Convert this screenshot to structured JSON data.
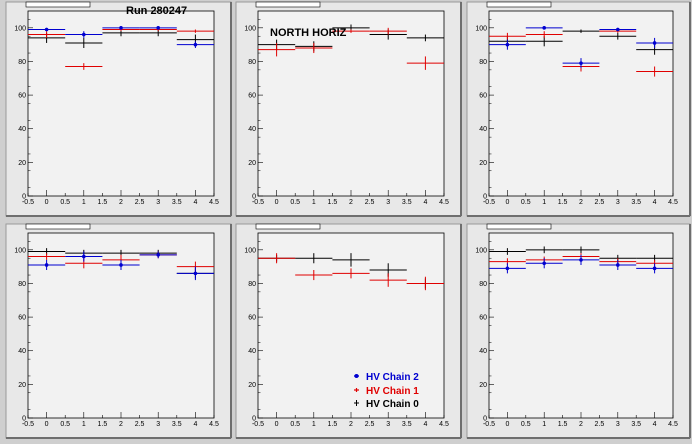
{
  "page": {
    "run_label": "Run 280247",
    "annotation": "NORTH HORIZ"
  },
  "colors": {
    "chain0": "#000000",
    "chain1": "#e00000",
    "chain2": "#0000d0"
  },
  "legend": [
    {
      "label": "HV Chain 2",
      "color": "#0000d0"
    },
    {
      "label": "HV Chain 1",
      "color": "#e00000"
    },
    {
      "label": "HV Chain 0",
      "color": "#000000"
    }
  ],
  "chart_data": [
    {
      "type": "scatter",
      "title": "",
      "xlim": [
        -0.5,
        4.5
      ],
      "ylim": [
        0,
        110
      ],
      "xticks": [
        -0.5,
        0,
        0.5,
        1,
        1.5,
        2,
        2.5,
        3,
        3.5,
        4,
        4.5
      ],
      "yticks": [
        0,
        20,
        40,
        60,
        80,
        100
      ],
      "series": [
        {
          "name": "HV Chain 0",
          "x": [
            0,
            1,
            2,
            3,
            4
          ],
          "y": [
            94,
            91,
            97,
            97,
            93
          ],
          "yerr": [
            3,
            3,
            2,
            2,
            3
          ]
        },
        {
          "name": "HV Chain 1",
          "x": [
            0,
            1,
            2,
            3,
            4
          ],
          "y": [
            96,
            77,
            99,
            99,
            98
          ],
          "yerr": [
            2,
            2,
            1,
            1,
            1
          ]
        },
        {
          "name": "HV Chain 2",
          "x": [
            0,
            1,
            2,
            3,
            4
          ],
          "y": [
            99,
            96,
            100,
            100,
            90
          ],
          "yerr": [
            1,
            2,
            1,
            1,
            2
          ]
        }
      ]
    },
    {
      "type": "scatter",
      "title": "",
      "xlim": [
        -0.5,
        4.5
      ],
      "ylim": [
        0,
        110
      ],
      "xticks": [
        -0.5,
        0,
        0.5,
        1,
        1.5,
        2,
        2.5,
        3,
        3.5,
        4,
        4.5
      ],
      "yticks": [
        0,
        20,
        40,
        60,
        80,
        100
      ],
      "series": [
        {
          "name": "HV Chain 0",
          "x": [
            0,
            1,
            2,
            3,
            4
          ],
          "y": [
            90,
            89,
            100,
            96,
            94
          ],
          "yerr": [
            3,
            3,
            2,
            3,
            2
          ]
        },
        {
          "name": "HV Chain 1",
          "x": [
            0,
            1,
            2,
            3,
            4
          ],
          "y": [
            87,
            88,
            98,
            98,
            79
          ],
          "yerr": [
            4,
            3,
            1,
            2,
            4
          ]
        }
      ]
    },
    {
      "type": "scatter",
      "title": "",
      "xlim": [
        -0.5,
        4.5
      ],
      "ylim": [
        0,
        110
      ],
      "xticks": [
        -0.5,
        0,
        0.5,
        1,
        1.5,
        2,
        2.5,
        3,
        3.5,
        4,
        4.5
      ],
      "yticks": [
        0,
        20,
        40,
        60,
        80,
        100
      ],
      "series": [
        {
          "name": "HV Chain 0",
          "x": [
            0,
            1,
            2,
            3,
            4
          ],
          "y": [
            92,
            92,
            98,
            95,
            87
          ],
          "yerr": [
            3,
            3,
            1,
            2,
            3
          ]
        },
        {
          "name": "HV Chain 1",
          "x": [
            0,
            1,
            2,
            3,
            4
          ],
          "y": [
            95,
            96,
            77,
            98,
            74
          ],
          "yerr": [
            2,
            2,
            3,
            1,
            3
          ]
        },
        {
          "name": "HV Chain 2",
          "x": [
            0,
            1,
            2,
            3,
            4
          ],
          "y": [
            90,
            100,
            79,
            99,
            91
          ],
          "yerr": [
            3,
            1,
            3,
            1,
            3
          ]
        }
      ]
    },
    {
      "type": "scatter",
      "title": "",
      "xlim": [
        -0.5,
        4.5
      ],
      "ylim": [
        0,
        110
      ],
      "xticks": [
        -0.5,
        0,
        0.5,
        1,
        1.5,
        2,
        2.5,
        3,
        3.5,
        4,
        4.5
      ],
      "yticks": [
        0,
        20,
        40,
        60,
        80,
        100
      ],
      "series": [
        {
          "name": "HV Chain 0",
          "x": [
            0,
            1,
            2,
            3,
            4
          ],
          "y": [
            99,
            98,
            98,
            98,
            86
          ],
          "yerr": [
            2,
            2,
            2,
            2,
            3
          ]
        },
        {
          "name": "HV Chain 1",
          "x": [
            0,
            1,
            2,
            3,
            4
          ],
          "y": [
            96,
            92,
            94,
            97,
            90
          ],
          "yerr": [
            2,
            3,
            3,
            2,
            3
          ]
        },
        {
          "name": "HV Chain 2",
          "x": [
            0,
            1,
            2,
            3,
            4
          ],
          "y": [
            91,
            96,
            91,
            97,
            86
          ],
          "yerr": [
            3,
            3,
            3,
            2,
            4
          ]
        }
      ]
    },
    {
      "type": "scatter",
      "title": "",
      "xlim": [
        -0.5,
        4.5
      ],
      "ylim": [
        0,
        110
      ],
      "xticks": [
        -0.5,
        0,
        0.5,
        1,
        1.5,
        2,
        2.5,
        3,
        3.5,
        4,
        4.5
      ],
      "yticks": [
        0,
        20,
        40,
        60,
        80,
        100
      ],
      "series": [
        {
          "name": "HV Chain 0",
          "x": [
            0,
            1,
            2,
            3,
            4
          ],
          "y": [
            95,
            95,
            94,
            88,
            80
          ],
          "yerr": [
            2,
            3,
            4,
            4,
            3
          ]
        },
        {
          "name": "HV Chain 1",
          "x": [
            0,
            1,
            2,
            3,
            4
          ],
          "y": [
            95,
            85,
            86,
            82,
            80
          ],
          "yerr": [
            3,
            3,
            3,
            4,
            4
          ]
        }
      ]
    },
    {
      "type": "scatter",
      "title": "",
      "xlim": [
        -0.5,
        4.5
      ],
      "ylim": [
        0,
        110
      ],
      "xticks": [
        -0.5,
        0,
        0.5,
        1,
        1.5,
        2,
        2.5,
        3,
        3.5,
        4,
        4.5
      ],
      "yticks": [
        0,
        20,
        40,
        60,
        80,
        100
      ],
      "series": [
        {
          "name": "HV Chain 0",
          "x": [
            0,
            1,
            2,
            3,
            4
          ],
          "y": [
            99,
            100,
            100,
            95,
            95
          ],
          "yerr": [
            2,
            2,
            2,
            2,
            2
          ]
        },
        {
          "name": "HV Chain 1",
          "x": [
            0,
            1,
            2,
            3,
            4
          ],
          "y": [
            93,
            94,
            96,
            93,
            92
          ],
          "yerr": [
            2,
            2,
            2,
            2,
            2
          ]
        },
        {
          "name": "HV Chain 2",
          "x": [
            0,
            1,
            2,
            3,
            4
          ],
          "y": [
            89,
            92,
            94,
            91,
            89
          ],
          "yerr": [
            3,
            3,
            3,
            3,
            3
          ]
        }
      ]
    }
  ]
}
